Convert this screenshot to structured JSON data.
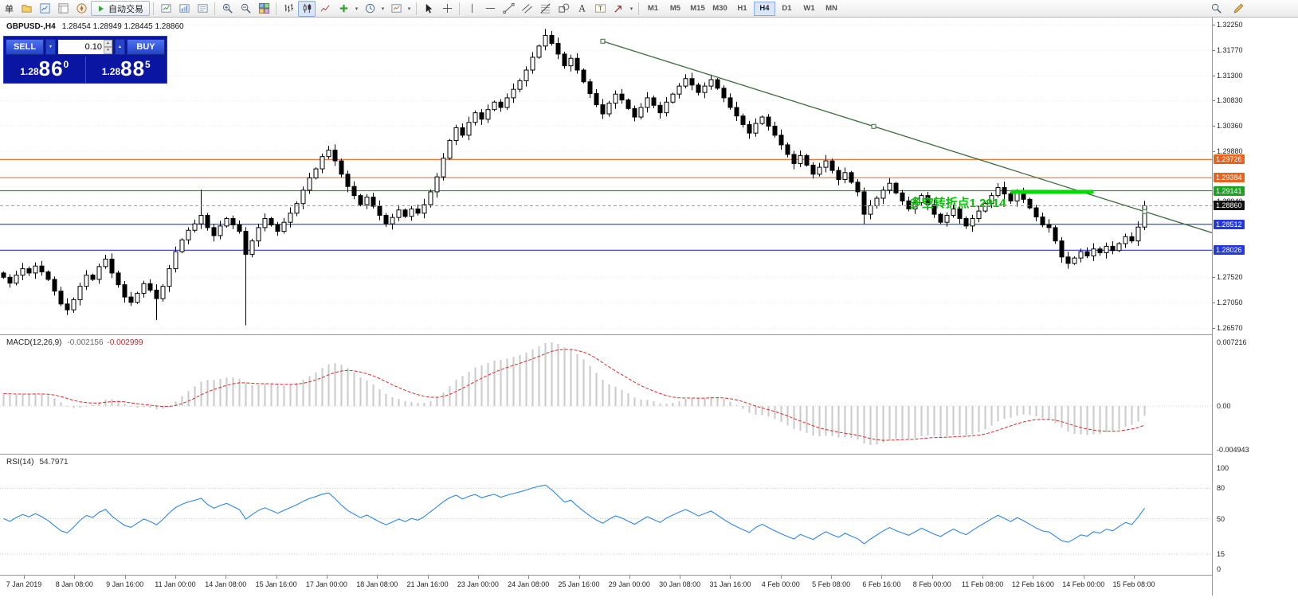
{
  "toolbar": {
    "new_order_label": "单",
    "autotrading_label": "自动交易",
    "timeframes": [
      "M1",
      "M5",
      "M15",
      "M30",
      "H1",
      "H4",
      "D1",
      "W1",
      "MN"
    ],
    "active_timeframe": "H4",
    "icon_names": [
      "profiles-icon",
      "market-watch-icon",
      "data-window-icon",
      "navigator-icon",
      "autotrading-play-icon",
      "new-chart-icon",
      "chart-profiles-icon",
      "chart-list-icon",
      "zoom-in-icon",
      "zoom-out-icon",
      "tile-windows-icon",
      "bar-chart-icon",
      "candlestick-chart-icon",
      "line-chart-icon",
      "indicators-icon",
      "periods-icon",
      "templates-icon",
      "cursor-icon",
      "crosshair-icon",
      "vertical-line-icon",
      "horizontal-line-icon",
      "trendline-icon",
      "equidistant-channel-icon",
      "fibonacci-icon",
      "shapes-icon",
      "text-icon",
      "text-label-icon",
      "arrows-icon",
      "search-icon",
      "edit-icon"
    ]
  },
  "trade_panel": {
    "sell_label": "SELL",
    "buy_label": "BUY",
    "lot_size": "0.10",
    "sell_price": {
      "prefix": "1.28",
      "big": "86",
      "sup": "0"
    },
    "buy_price": {
      "prefix": "1.28",
      "big": "88",
      "sup": "5"
    },
    "colors": {
      "panel_bg": "#0a16a2",
      "button_blue": "#2d4fd6"
    }
  },
  "chart_data": [
    {
      "type": "candlestick",
      "title": "GBPUSD-,H4",
      "ohlc_text": "1.28454 1.28949 1.28445 1.28860",
      "timeframe": "H4",
      "price_range": {
        "top": 1.3225,
        "bottom": 1.2657
      },
      "y_ticks": [
        1.3225,
        1.3177,
        1.313,
        1.3083,
        1.3036,
        1.2988,
        1.2894,
        1.2752,
        1.2705,
        1.2657
      ],
      "first_open": 1.276,
      "closes": [
        1.2752,
        1.2741,
        1.2756,
        1.2768,
        1.276,
        1.2773,
        1.2762,
        1.2748,
        1.2726,
        1.2702,
        1.2691,
        1.271,
        1.2735,
        1.2756,
        1.2748,
        1.2772,
        1.2786,
        1.276,
        1.2738,
        1.2715,
        1.2705,
        1.2722,
        1.274,
        1.2728,
        1.2712,
        1.2735,
        1.2768,
        1.28,
        1.2822,
        1.284,
        1.2852,
        1.2868,
        1.2845,
        1.283,
        1.2848,
        1.2862,
        1.285,
        1.2838,
        1.2795,
        1.282,
        1.2845,
        1.2862,
        1.285,
        1.2838,
        1.2855,
        1.2872,
        1.289,
        1.2915,
        1.2938,
        1.2955,
        1.2978,
        1.299,
        1.297,
        1.2945,
        1.2922,
        1.2905,
        1.2888,
        1.2902,
        1.2885,
        1.2868,
        1.2852,
        1.2864,
        1.2878,
        1.2866,
        1.288,
        1.2872,
        1.2888,
        1.2912,
        1.294,
        1.2975,
        1.3008,
        1.3032,
        1.3018,
        1.3042,
        1.306,
        1.3048,
        1.3066,
        1.308,
        1.307,
        1.3088,
        1.3104,
        1.312,
        1.314,
        1.3164,
        1.3185,
        1.3205,
        1.319,
        1.317,
        1.3148,
        1.3162,
        1.314,
        1.3118,
        1.3096,
        1.3075,
        1.3058,
        1.3078,
        1.3095,
        1.3084,
        1.3068,
        1.3052,
        1.307,
        1.3088,
        1.3074,
        1.306,
        1.308,
        1.3095,
        1.311,
        1.3124,
        1.3112,
        1.3098,
        1.311,
        1.3122,
        1.3106,
        1.3088,
        1.307,
        1.3054,
        1.3038,
        1.3022,
        1.304,
        1.3052,
        1.3035,
        1.3018,
        1.3,
        1.2982,
        1.2965,
        1.298,
        1.2962,
        1.2945,
        1.2958,
        1.297,
        1.2952,
        1.2935,
        1.2948,
        1.293,
        1.2912,
        1.287,
        1.2886,
        1.29,
        1.2915,
        1.2928,
        1.291,
        1.2895,
        1.288,
        1.2892,
        1.2905,
        1.2888,
        1.287,
        1.2855,
        1.2868,
        1.288,
        1.2862,
        1.2848,
        1.2862,
        1.2876,
        1.289,
        1.2905,
        1.292,
        1.2908,
        1.2895,
        1.291,
        1.2898,
        1.2882,
        1.2865,
        1.285,
        1.2845,
        1.282,
        1.279,
        1.2778,
        1.2788,
        1.28,
        1.2792,
        1.2805,
        1.2798,
        1.281,
        1.2802,
        1.2815,
        1.2828,
        1.282,
        1.2846,
        1.2886
      ],
      "wick_overrides": {
        "24": {
          "l": 1.2672
        },
        "31": {
          "h": 1.2916
        },
        "38": {
          "l": 1.2662,
          "h": 1.2846
        },
        "85": {
          "h": 1.3217
        },
        "135": {
          "l": 1.2852
        },
        "167": {
          "l": 1.2768
        },
        "179": {
          "h": 1.2895
        }
      },
      "hlines": [
        {
          "price": 1.29726,
          "color": "#e8641e"
        },
        {
          "price": 1.29384,
          "color": "#e8641e"
        },
        {
          "price": 1.29141,
          "color": "#1ea21e"
        },
        {
          "price": 1.28512,
          "color": "#2438e0"
        },
        {
          "price": 1.28026,
          "color": "#2438e0"
        }
      ],
      "current_price": {
        "value": 1.2886,
        "color": "#111111"
      },
      "trendline": {
        "start_bar": 94,
        "start_price": 1.3194,
        "end_bar": 179,
        "end_price": 1.2875,
        "extend_right": true,
        "color": "#3d6b3d"
      },
      "highlight_segment": {
        "start_bar": 158,
        "end_bar": 171,
        "price": 1.2912,
        "width": 5,
        "color": "#00dc00"
      },
      "annotation": {
        "text": "多空转折点1.2914",
        "anchor_bar": 158,
        "price": 1.2891,
        "color": "#00c400"
      },
      "x_labels": [
        "7 Jan 2019",
        "8 Jan 08:00",
        "9 Jan 16:00",
        "11 Jan 00:00",
        "14 Jan 08:00",
        "15 Jan 16:00",
        "17 Jan 00:00",
        "18 Jan 08:00",
        "21 Jan 16:00",
        "23 Jan 00:00",
        "24 Jan 08:00",
        "25 Jan 16:00",
        "29 Jan 00:00",
        "30 Jan 08:00",
        "31 Jan 16:00",
        "4 Feb 00:00",
        "5 Feb 08:00",
        "6 Feb 16:00",
        "8 Feb 00:00",
        "11 Feb 08:00",
        "12 Feb 16:00",
        "14 Feb 00:00",
        "15 Feb 08:00"
      ]
    },
    {
      "type": "macd",
      "label": "MACD(12,26,9)",
      "values_text": [
        "-0.002156",
        "-0.002999"
      ],
      "params": [
        12,
        26,
        9
      ],
      "axis_labels": [
        "0.007216",
        "0.00",
        "-0.004943"
      ],
      "histogram_color": "#c9c9c9",
      "signal_color": "#e02828",
      "derived_from": "chart_data.0.closes"
    },
    {
      "type": "rsi",
      "label": "RSI(14)",
      "value_text": "54.7971",
      "period": 14,
      "levels": [
        80,
        50,
        15
      ],
      "axis_labels": [
        100,
        80,
        50,
        15,
        0
      ],
      "color": "#2e86e0",
      "derived_from": "chart_data.0.closes"
    }
  ]
}
